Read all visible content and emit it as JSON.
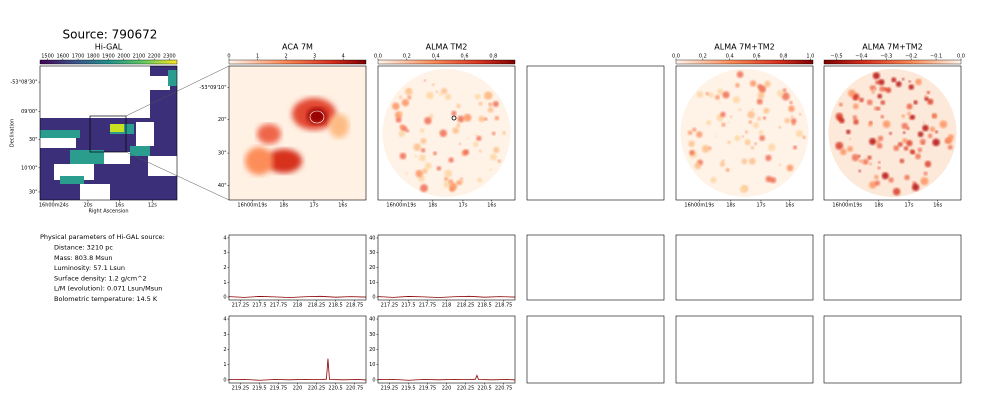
{
  "title": "Source: 790672",
  "maps": [
    {
      "title": "Hi-GAL",
      "cbar_lim": [
        1450,
        2350
      ],
      "cbar_ticks": [
        1500,
        1600,
        1700,
        1800,
        1900,
        2000,
        2100,
        2200,
        2300
      ],
      "xticks": [
        "16h00m24s",
        "20s",
        "16s",
        "12s"
      ],
      "yticks": [
        "-53°08'30\"",
        "09'00\"",
        "30\"",
        "10'00\"",
        "30\""
      ],
      "xlabel": "Right Ascension",
      "ylabel": "Declination"
    },
    {
      "title": "ACA 7M",
      "cbar_lim": [
        0,
        4.8
      ],
      "cbar_ticks": [
        0,
        1,
        2,
        3,
        4
      ],
      "xticks": [
        "16h00m19s",
        "18s",
        "17s",
        "16s"
      ],
      "yticks": [
        "-53°09'10\"",
        "20\"",
        "30\"",
        "40\""
      ]
    },
    {
      "title": "ALMA TM2",
      "cbar_lim": [
        0,
        0.95
      ],
      "cbar_ticks": [
        {
          "value": 0,
          "label": "0.0"
        },
        0.2,
        0.4,
        0.6,
        0.8
      ],
      "xticks": [
        "16h00m19s",
        "18s",
        "17s",
        "16s"
      ]
    },
    {
      "title": "ALMA 7M+TM2",
      "cbar_lim": [
        0,
        1.02
      ],
      "cbar_ticks": [
        {
          "value": 0,
          "label": "0.0"
        },
        0.2,
        0.4,
        0.6,
        0.8,
        {
          "value": 1,
          "label": "1.0"
        }
      ],
      "xticks": [
        "16h00m19s",
        "18s",
        "17s",
        "16s"
      ]
    },
    {
      "title": "ALMA 7M+TM2",
      "cbar_lim": [
        -0.55,
        0
      ],
      "cbar_ticks": [
        {
          "value": -0.5,
          "label": "−0.5"
        },
        {
          "value": -0.4,
          "label": "−0.4"
        },
        {
          "value": -0.3,
          "label": "−0.3"
        },
        {
          "value": -0.2,
          "label": "−0.2"
        },
        {
          "value": -0.1,
          "label": "−0.1"
        },
        {
          "value": 0,
          "label": "0.0"
        }
      ],
      "xticks": [
        "16h00m19s",
        "18s",
        "17s",
        "16s"
      ]
    }
  ],
  "params": {
    "heading": "Physical parameters of Hi-GAL source:",
    "lines": [
      "Distance: 3210 pc",
      "Mass: 803.8 Msun",
      "Luminosity: 57.1 Lsun",
      "Surface density: 1.2 g/cm^2",
      "L/M (evolution): 0.071 Lsun/Msun",
      "Bolometric temperature: 14.5 K"
    ]
  },
  "chart_data": [
    {
      "type": "line",
      "color": "#8b0000",
      "x": [
        217.1,
        217.3,
        217.5,
        217.7,
        217.9,
        218.1,
        218.3,
        218.5,
        218.7,
        218.9
      ],
      "values": [
        0.03,
        -0.02,
        0.04,
        0.01,
        -0.03,
        0.02,
        0.05,
        -0.01,
        0.03,
        0.0
      ],
      "xlim": [
        217.1,
        218.9
      ],
      "ylim": [
        -0.2,
        4.2
      ],
      "xticks": [
        217.25,
        217.5,
        217.75,
        218.0,
        218.25,
        218.5,
        218.75
      ],
      "yticks": [
        0,
        1,
        2,
        3,
        4
      ]
    },
    {
      "type": "line",
      "color": "#8b0000",
      "x": [
        217.1,
        217.3,
        217.5,
        217.7,
        217.9,
        218.1,
        218.3,
        218.5,
        218.7,
        218.9
      ],
      "values": [
        0.3,
        -0.2,
        0.4,
        0.1,
        -0.3,
        0.2,
        0.5,
        -0.1,
        0.3,
        0.0
      ],
      "xlim": [
        217.1,
        218.9
      ],
      "ylim": [
        -2,
        42
      ],
      "xticks": [
        217.25,
        217.5,
        217.75,
        218.0,
        218.25,
        218.5,
        218.75
      ],
      "yticks": [
        0,
        10,
        20,
        30,
        40
      ]
    },
    {
      "type": "line",
      "color": "#8b0000",
      "x": [
        219.1,
        219.3,
        219.5,
        219.7,
        219.9,
        220.1,
        220.3,
        220.38,
        220.4,
        220.42,
        220.6,
        220.8,
        220.9
      ],
      "values": [
        0.02,
        0.04,
        -0.02,
        0.03,
        0.01,
        0.04,
        0.02,
        0.05,
        1.4,
        0.03,
        0.01,
        0.03,
        0.0
      ],
      "xlim": [
        219.1,
        220.9
      ],
      "ylim": [
        -0.2,
        4.2
      ],
      "xticks": [
        219.25,
        219.5,
        219.75,
        220.0,
        220.25,
        220.5,
        220.75
      ],
      "yticks": [
        0,
        1,
        2,
        3,
        4
      ]
    },
    {
      "type": "line",
      "color": "#8b0000",
      "x": [
        219.1,
        219.3,
        219.5,
        219.7,
        219.9,
        220.1,
        220.3,
        220.38,
        220.4,
        220.42,
        220.6,
        220.8,
        220.9
      ],
      "values": [
        0.2,
        0.4,
        -0.2,
        0.3,
        0.1,
        0.4,
        0.2,
        0.5,
        3,
        0.3,
        0.1,
        0.3,
        0.0
      ],
      "xlim": [
        219.1,
        220.9
      ],
      "ylim": [
        -2,
        42
      ],
      "xticks": [
        219.25,
        219.5,
        219.75,
        220.0,
        220.25,
        220.5,
        220.75
      ],
      "yticks": [
        0,
        10,
        20,
        30,
        40
      ]
    }
  ]
}
